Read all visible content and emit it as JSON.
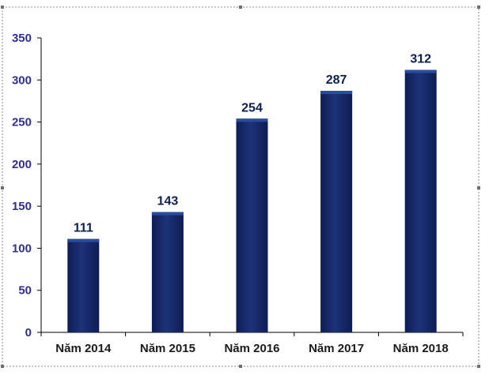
{
  "chart_data": {
    "type": "bar",
    "categories": [
      "Năm 2014",
      "Năm 2015",
      "Năm 2016",
      "Năm 2017",
      "Năm 2018"
    ],
    "values": [
      111,
      143,
      254,
      287,
      312
    ],
    "data_labels": [
      "111",
      "143",
      "254",
      "287",
      "312"
    ],
    "title": "",
    "xlabel": "",
    "ylabel": "",
    "ylim": [
      0,
      350
    ],
    "yticks": [
      0,
      50,
      100,
      150,
      200,
      250,
      300,
      350
    ],
    "ytick_labels": [
      "0",
      "50",
      "100",
      "150",
      "200",
      "250",
      "300",
      "350"
    ],
    "grid": false,
    "legend": "none",
    "colors": {
      "bar_dark": "#0e1d55",
      "bar_mid": "#1d3278",
      "bar_top": "#2a4c9e",
      "y_tick_text": "#2e2f8f",
      "data_label_text": "#0c1f4f"
    }
  }
}
